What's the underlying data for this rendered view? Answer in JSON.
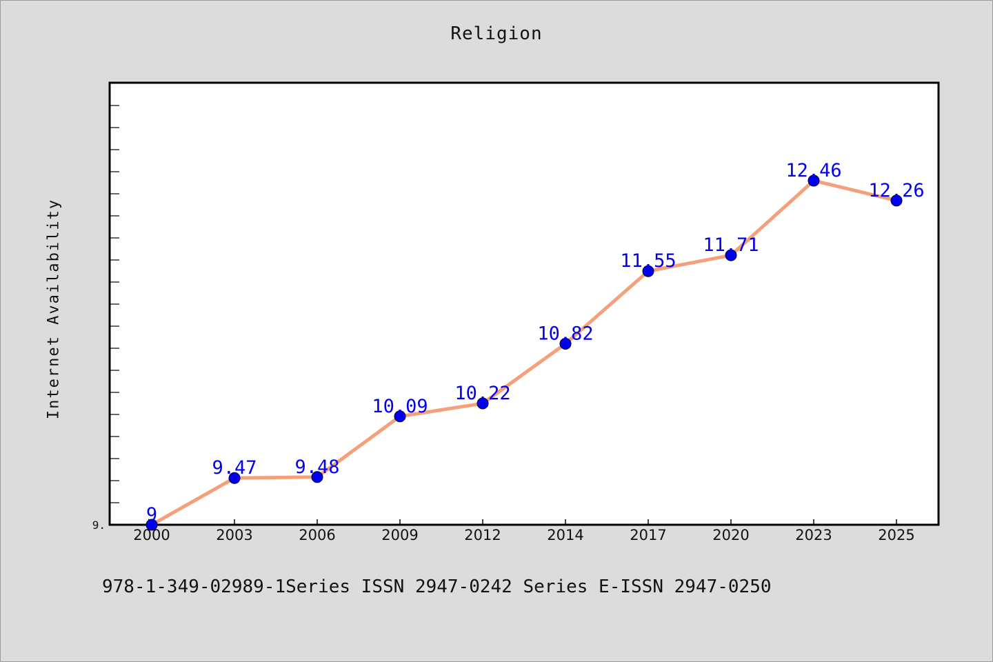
{
  "chart_data": {
    "type": "line",
    "title": "Religion",
    "ylabel": "Internet Availability",
    "xlabel": "",
    "categories": [
      "2000",
      "2003",
      "2006",
      "2009",
      "2012",
      "2014",
      "2017",
      "2020",
      "2023",
      "2025"
    ],
    "series": [
      {
        "values": [
          9,
          9.47,
          9.48,
          10.09,
          10.22,
          10.82,
          11.55,
          11.71,
          12.46,
          12.26
        ]
      }
    ],
    "data_labels": [
      "9",
      "9.47",
      "9.48",
      "10.09",
      "10.22",
      "10.82",
      "11.55",
      "11.71",
      "12.46",
      "12.26"
    ],
    "ylim": [
      9,
      13
    ],
    "y_tick_label": "9.",
    "grid": false,
    "colors": {
      "line": "#f4a07a",
      "marker": "#0000ee",
      "label": "#0000ee"
    }
  },
  "footer": "978-1-349-02989-1Series ISSN 2947-0242 Series E-ISSN 2947-0250"
}
